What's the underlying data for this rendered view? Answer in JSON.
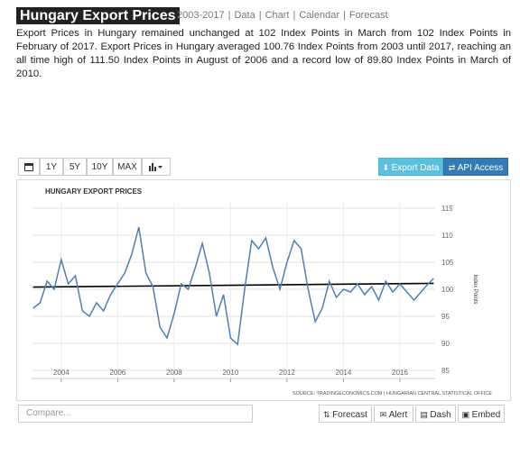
{
  "header": {
    "title": "Hungary Export Prices",
    "links": [
      "2003-2017",
      "Data",
      "Chart",
      "Calendar",
      "Forecast"
    ],
    "separator": "|"
  },
  "description": "Export Prices in Hungary remained unchanged at 102 Index Points in March from 102 Index Points in February of 2017. Export Prices in Hungary averaged 100.76 Index Points from 2003 until 2017, reaching an all time high of 111.50 Index Points in August of 2006 and a record low of 89.80 Index Points in March of 2010.",
  "toolbar": {
    "ranges": [
      "1Y",
      "5Y",
      "10Y",
      "MAX"
    ],
    "export": "Export Data",
    "api": "API Access"
  },
  "chart_data": {
    "type": "line",
    "title": "HUNGARY EXPORT PRICES",
    "y_label": "Index Points",
    "source": "SOURCE: TRADINGECONOMICS.COM  |  HUNGARIAN CENTRAL STATISTICAL OFFICE",
    "x": [
      2003,
      2003.25,
      2003.5,
      2003.75,
      2004,
      2004.25,
      2004.5,
      2004.75,
      2005,
      2005.25,
      2005.5,
      2005.75,
      2006,
      2006.25,
      2006.5,
      2006.75,
      2007,
      2007.25,
      2007.5,
      2007.75,
      2008,
      2008.25,
      2008.5,
      2008.75,
      2009,
      2009.25,
      2009.5,
      2009.75,
      2010,
      2010.25,
      2010.5,
      2010.75,
      2011,
      2011.25,
      2011.5,
      2011.75,
      2012,
      2012.25,
      2012.5,
      2012.75,
      2013,
      2013.25,
      2013.5,
      2013.75,
      2014,
      2014.25,
      2014.5,
      2014.75,
      2015,
      2015.25,
      2015.5,
      2015.75,
      2016,
      2016.25,
      2016.5,
      2016.75,
      2017,
      2017.2
    ],
    "values": [
      96.5,
      97.5,
      101.5,
      100,
      105.5,
      101,
      102.5,
      96,
      95,
      97.5,
      96,
      99,
      101,
      103,
      106.5,
      111.5,
      103,
      100.5,
      93,
      91,
      95.5,
      101,
      100,
      104,
      108.5,
      103,
      95,
      99,
      91,
      89.8,
      100,
      109,
      107.5,
      109.5,
      104,
      100,
      105,
      109,
      107.5,
      100,
      94,
      96.5,
      101.5,
      98.5,
      100,
      99.5,
      101,
      99,
      100.5,
      98,
      101.5,
      99.5,
      101,
      99.5,
      98,
      99.5,
      101,
      102
    ],
    "color": "#4f7fb5",
    "trend": {
      "x": [
        2003,
        2017.2
      ],
      "values": [
        100.4,
        101.1
      ],
      "color": "#000000"
    },
    "xlim": [
      2002.95,
      2017.25
    ],
    "ylim": [
      83.5,
      116.5
    ],
    "xticks": [
      2004,
      2006,
      2008,
      2010,
      2012,
      2014,
      2016
    ],
    "yticks": [
      85,
      90,
      95,
      100,
      105,
      110,
      115
    ],
    "grid": true
  },
  "footer": {
    "compare": "Compare...",
    "buttons": [
      "Forecast",
      "Alert",
      "Dash",
      "Embed"
    ]
  }
}
